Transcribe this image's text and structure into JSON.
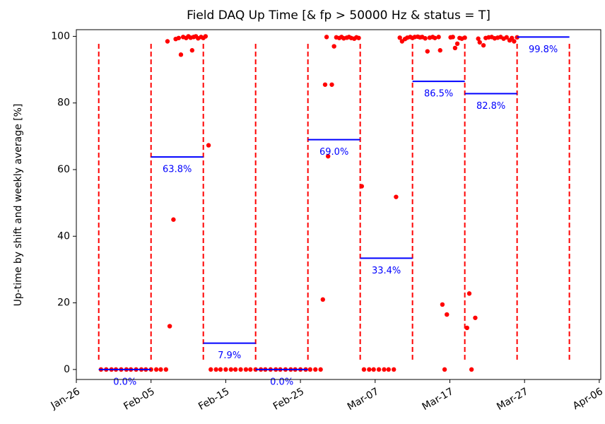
{
  "chart_data": {
    "type": "scatter",
    "title": "Field DAQ Up Time [& fp > 50000 Hz & status = T]",
    "y_label": "Up-time by shift and weekly average [%]",
    "xlim": [
      0,
      70.2
    ],
    "xticks": [
      {
        "value": 0,
        "label": "Jan-26"
      },
      {
        "value": 10,
        "label": "Feb-05"
      },
      {
        "value": 20,
        "label": "Feb-15"
      },
      {
        "value": 30,
        "label": "Feb-25"
      },
      {
        "value": 40,
        "label": "Mar-07"
      },
      {
        "value": 50,
        "label": "Mar-17"
      },
      {
        "value": 60,
        "label": "Mar-27"
      },
      {
        "value": 70,
        "label": "Apr-06"
      }
    ],
    "ylim": [
      -3,
      102
    ],
    "yticks": [
      0,
      20,
      40,
      60,
      80,
      100
    ],
    "week_boundaries": [
      3,
      10,
      17,
      24,
      31,
      38,
      45,
      52,
      59,
      66
    ],
    "boundary_color": "#ff0000",
    "weekly_average": {
      "color": "#0000ff",
      "x_start": [
        3,
        10,
        17,
        24,
        31,
        38,
        45,
        52,
        59
      ],
      "x_end": [
        10,
        17,
        24,
        31,
        38,
        45,
        52,
        59,
        66
      ],
      "values": [
        0.0,
        63.8,
        7.9,
        0.0,
        69.0,
        33.4,
        86.5,
        82.8,
        99.8
      ],
      "value_labels": [
        "0.0%",
        "63.8%",
        "7.9%",
        "0.0%",
        "69.0%",
        "33.4%",
        "86.5%",
        "82.8%",
        "99.8%"
      ]
    },
    "shift_uptime": {
      "color": "#ff0000",
      "x": [
        3.3,
        4,
        4.7,
        5.3,
        6,
        6.7,
        7.3,
        8,
        8.7,
        9.3,
        10,
        10.7,
        11.3,
        12,
        12.2,
        12.5,
        13.0,
        13.3,
        13.7,
        14.0,
        14.3,
        14.7,
        15.0,
        15.3,
        15.5,
        15.7,
        16.0,
        16.3,
        16.7,
        17.0,
        17.3,
        17.7,
        18,
        18.7,
        19.3,
        20,
        20.7,
        21.3,
        22,
        22.7,
        23.3,
        24,
        24.7,
        25.3,
        26,
        26.7,
        27.3,
        28,
        28.7,
        29.3,
        30,
        30.7,
        31.3,
        32,
        32.7,
        33.0,
        33.3,
        33.5,
        33.7,
        34.2,
        34.5,
        34.8,
        35.2,
        35.5,
        35.8,
        36.2,
        36.5,
        36.8,
        37.2,
        37.5,
        37.8,
        38.2,
        38.5,
        39.2,
        39.8,
        40.5,
        41.2,
        41.8,
        42.5,
        42.8,
        43.3,
        43.6,
        44,
        44.3,
        44.7,
        45,
        45.3,
        45.7,
        46,
        46.3,
        46.7,
        47,
        47.3,
        47.7,
        48,
        48.5,
        48.7,
        49,
        49.3,
        49.6,
        50.1,
        50.4,
        50.7,
        51,
        51.3,
        51.6,
        52,
        52.3,
        52.6,
        52.9,
        53.4,
        53.8,
        54,
        54.5,
        54.8,
        55.2,
        55.6,
        56,
        56.4,
        56.8,
        57.2,
        57.6,
        58,
        58.3,
        58.6,
        59
      ],
      "values": [
        0,
        0,
        0,
        0,
        0,
        0,
        0,
        0,
        0,
        0,
        0,
        0,
        0,
        0,
        98.5,
        13,
        45,
        99.2,
        99.5,
        94.5,
        99.8,
        99.5,
        100,
        99.6,
        95.8,
        99.8,
        100,
        99.4,
        99.8,
        99.5,
        100,
        67.3,
        0,
        0,
        0,
        0,
        0,
        0,
        0,
        0,
        0,
        0,
        0,
        0,
        0,
        0,
        0,
        0,
        0,
        0,
        0,
        0,
        0,
        0,
        0,
        21,
        85.5,
        99.8,
        64,
        85.5,
        97,
        99.7,
        99.5,
        99.8,
        99.4,
        99.6,
        99.8,
        99.5,
        99.3,
        99.7,
        99.5,
        55,
        0,
        0,
        0,
        0,
        0,
        0,
        0,
        51.8,
        99.6,
        98.5,
        99.2,
        99.6,
        99.8,
        99.5,
        99.8,
        99.9,
        99.7,
        99.8,
        99.4,
        95.5,
        99.6,
        99.8,
        99.5,
        99.8,
        95.8,
        19.5,
        0,
        16.5,
        99.7,
        99.8,
        96.5,
        97.8,
        99.5,
        99.3,
        99.6,
        12.5,
        22.8,
        0,
        15.5,
        99.3,
        98.2,
        97.3,
        99.5,
        99.7,
        99.8,
        99.4,
        99.6,
        99.8,
        99.3,
        99.7,
        98.8,
        99.5,
        98.5,
        99.7
      ]
    }
  }
}
